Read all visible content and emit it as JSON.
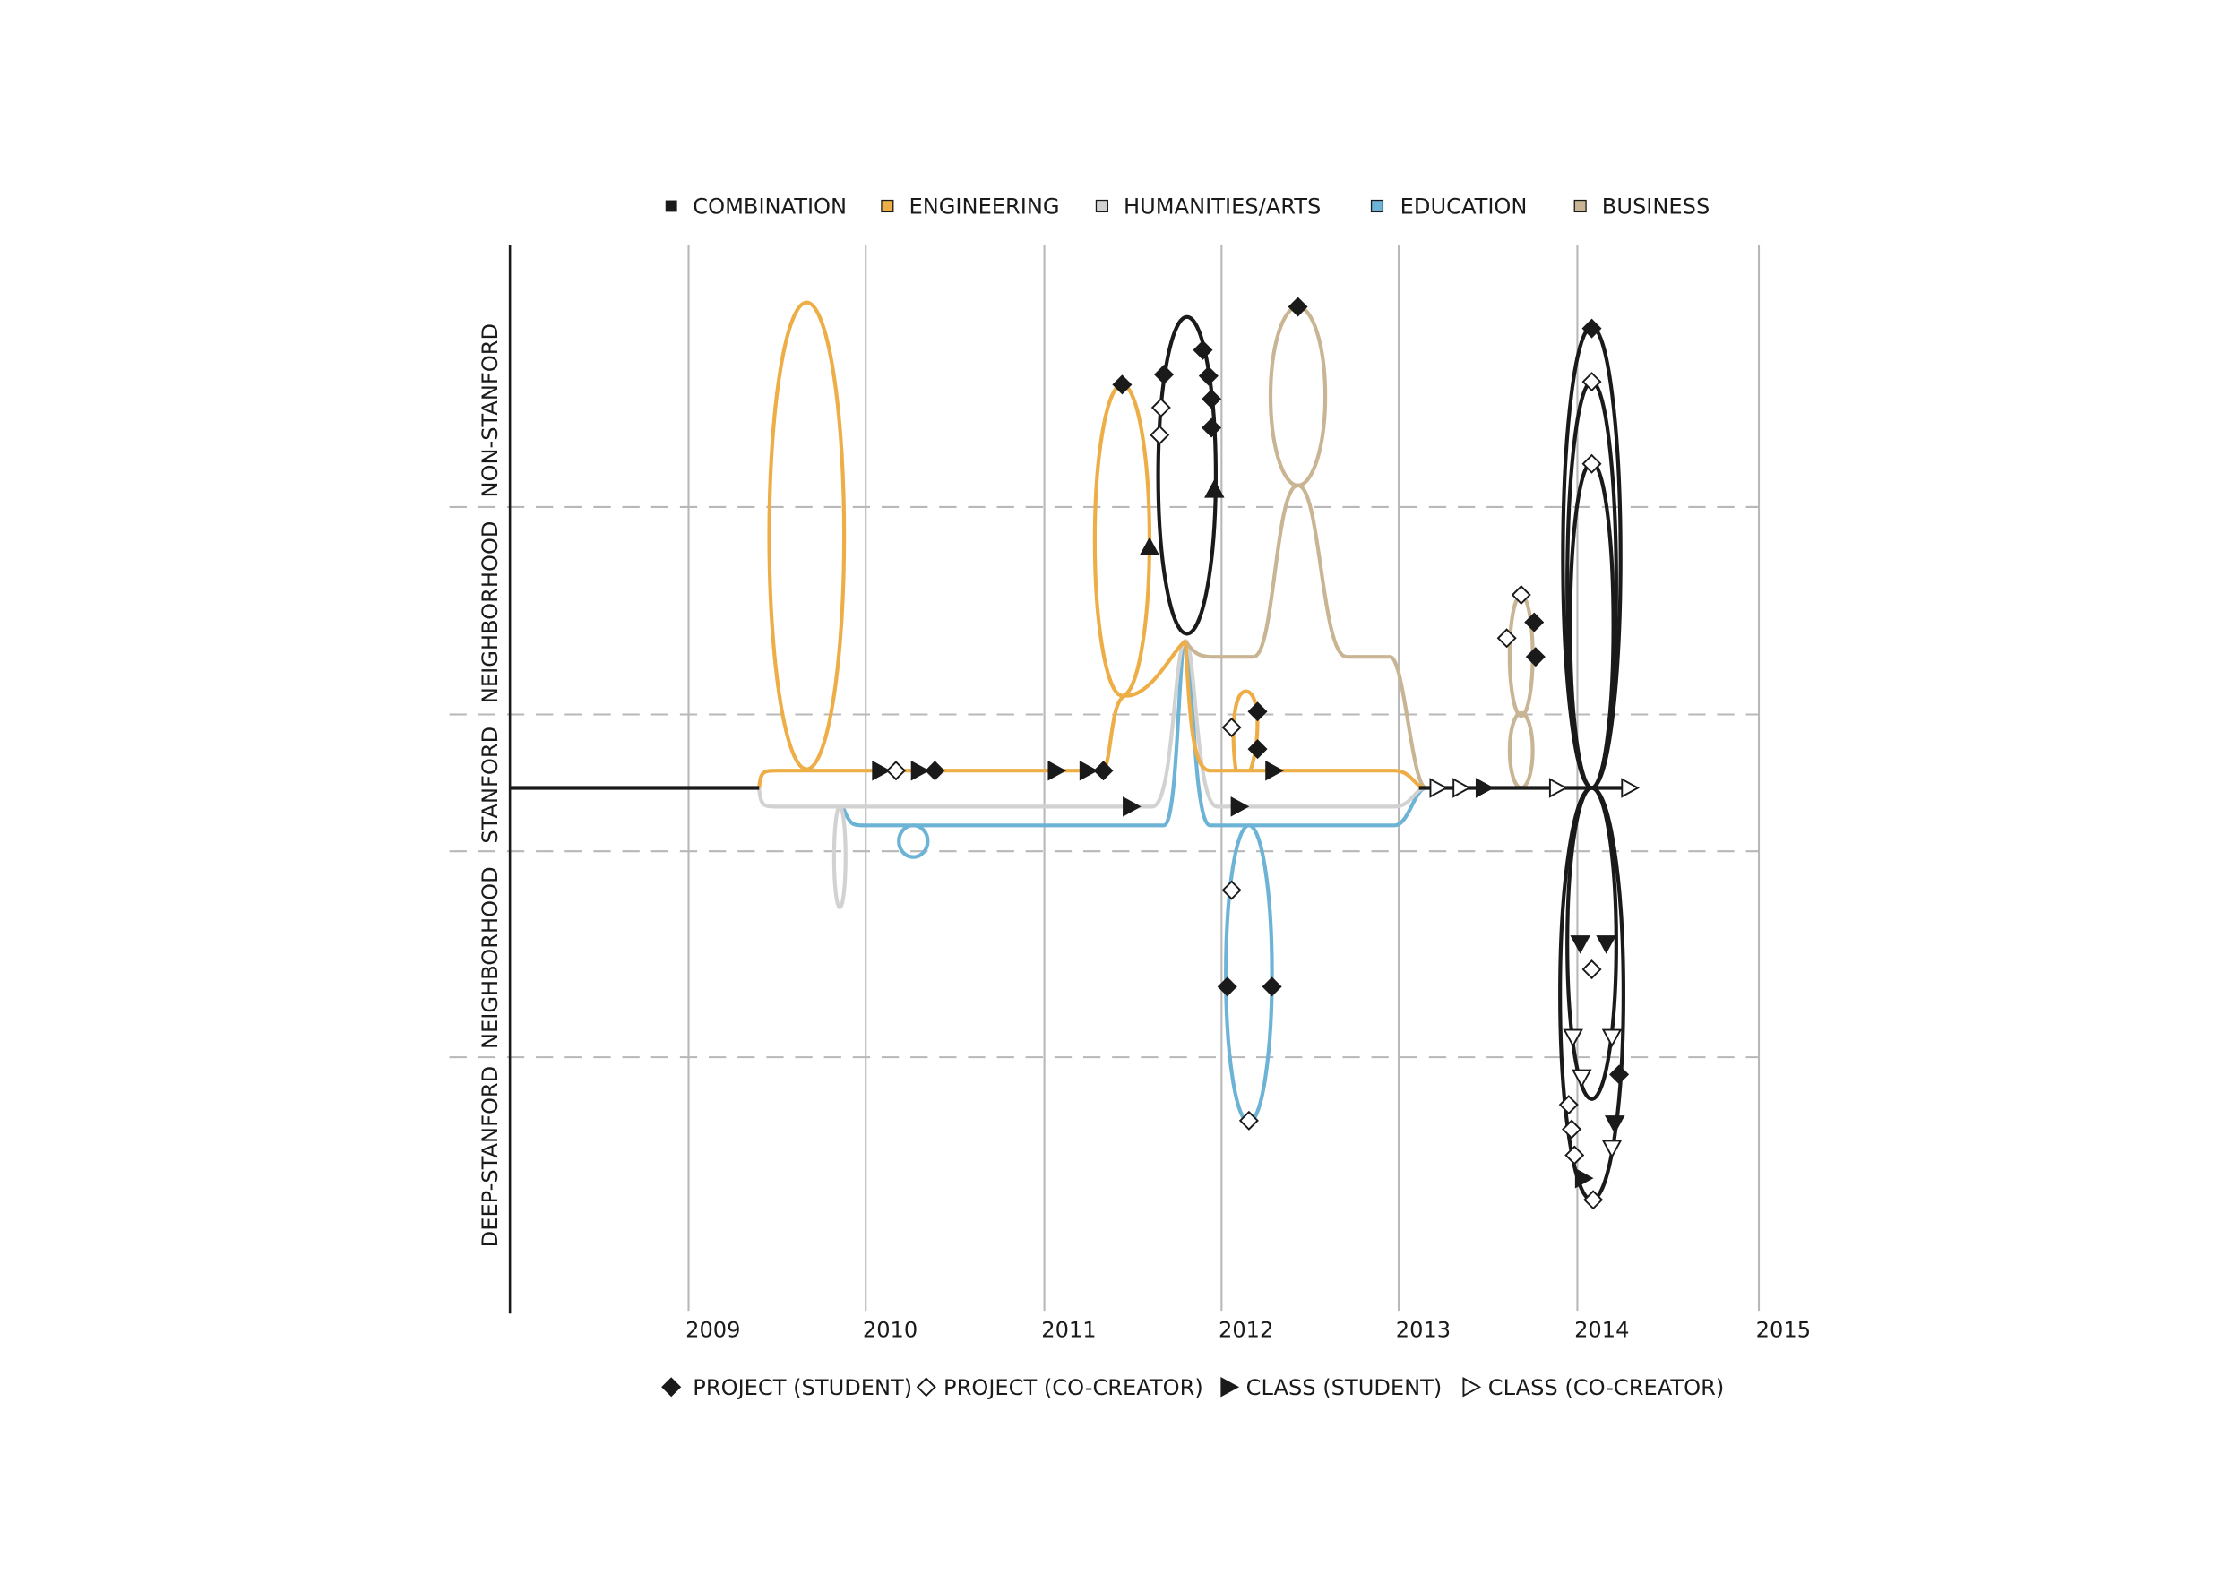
{
  "legend": {
    "fields": [
      {
        "label": "COMBINATION",
        "color": "#1a1a1a"
      },
      {
        "label": "ENGINEERING",
        "color": "#eeae47"
      },
      {
        "label": "HUMANITIES/ARTS",
        "color": "#d2d2d2"
      },
      {
        "label": "EDUCATION",
        "color": "#6db3d6"
      },
      {
        "label": "BUSINESS",
        "color": "#c9b593"
      }
    ],
    "markers": [
      "PROJECT (STUDENT)",
      "PROJECT (CO-CREATOR)",
      "CLASS (STUDENT)",
      "CLASS (CO-CREATOR)"
    ]
  },
  "zones": [
    "NON-STANFORD",
    "NEIGHBORHOOD",
    "STANFORD",
    "NEIGHBORHOOD",
    "DEEP-STANFORD"
  ],
  "years": [
    "2009",
    "2010",
    "2011",
    "2012",
    "2013",
    "2014",
    "2015"
  ]
}
